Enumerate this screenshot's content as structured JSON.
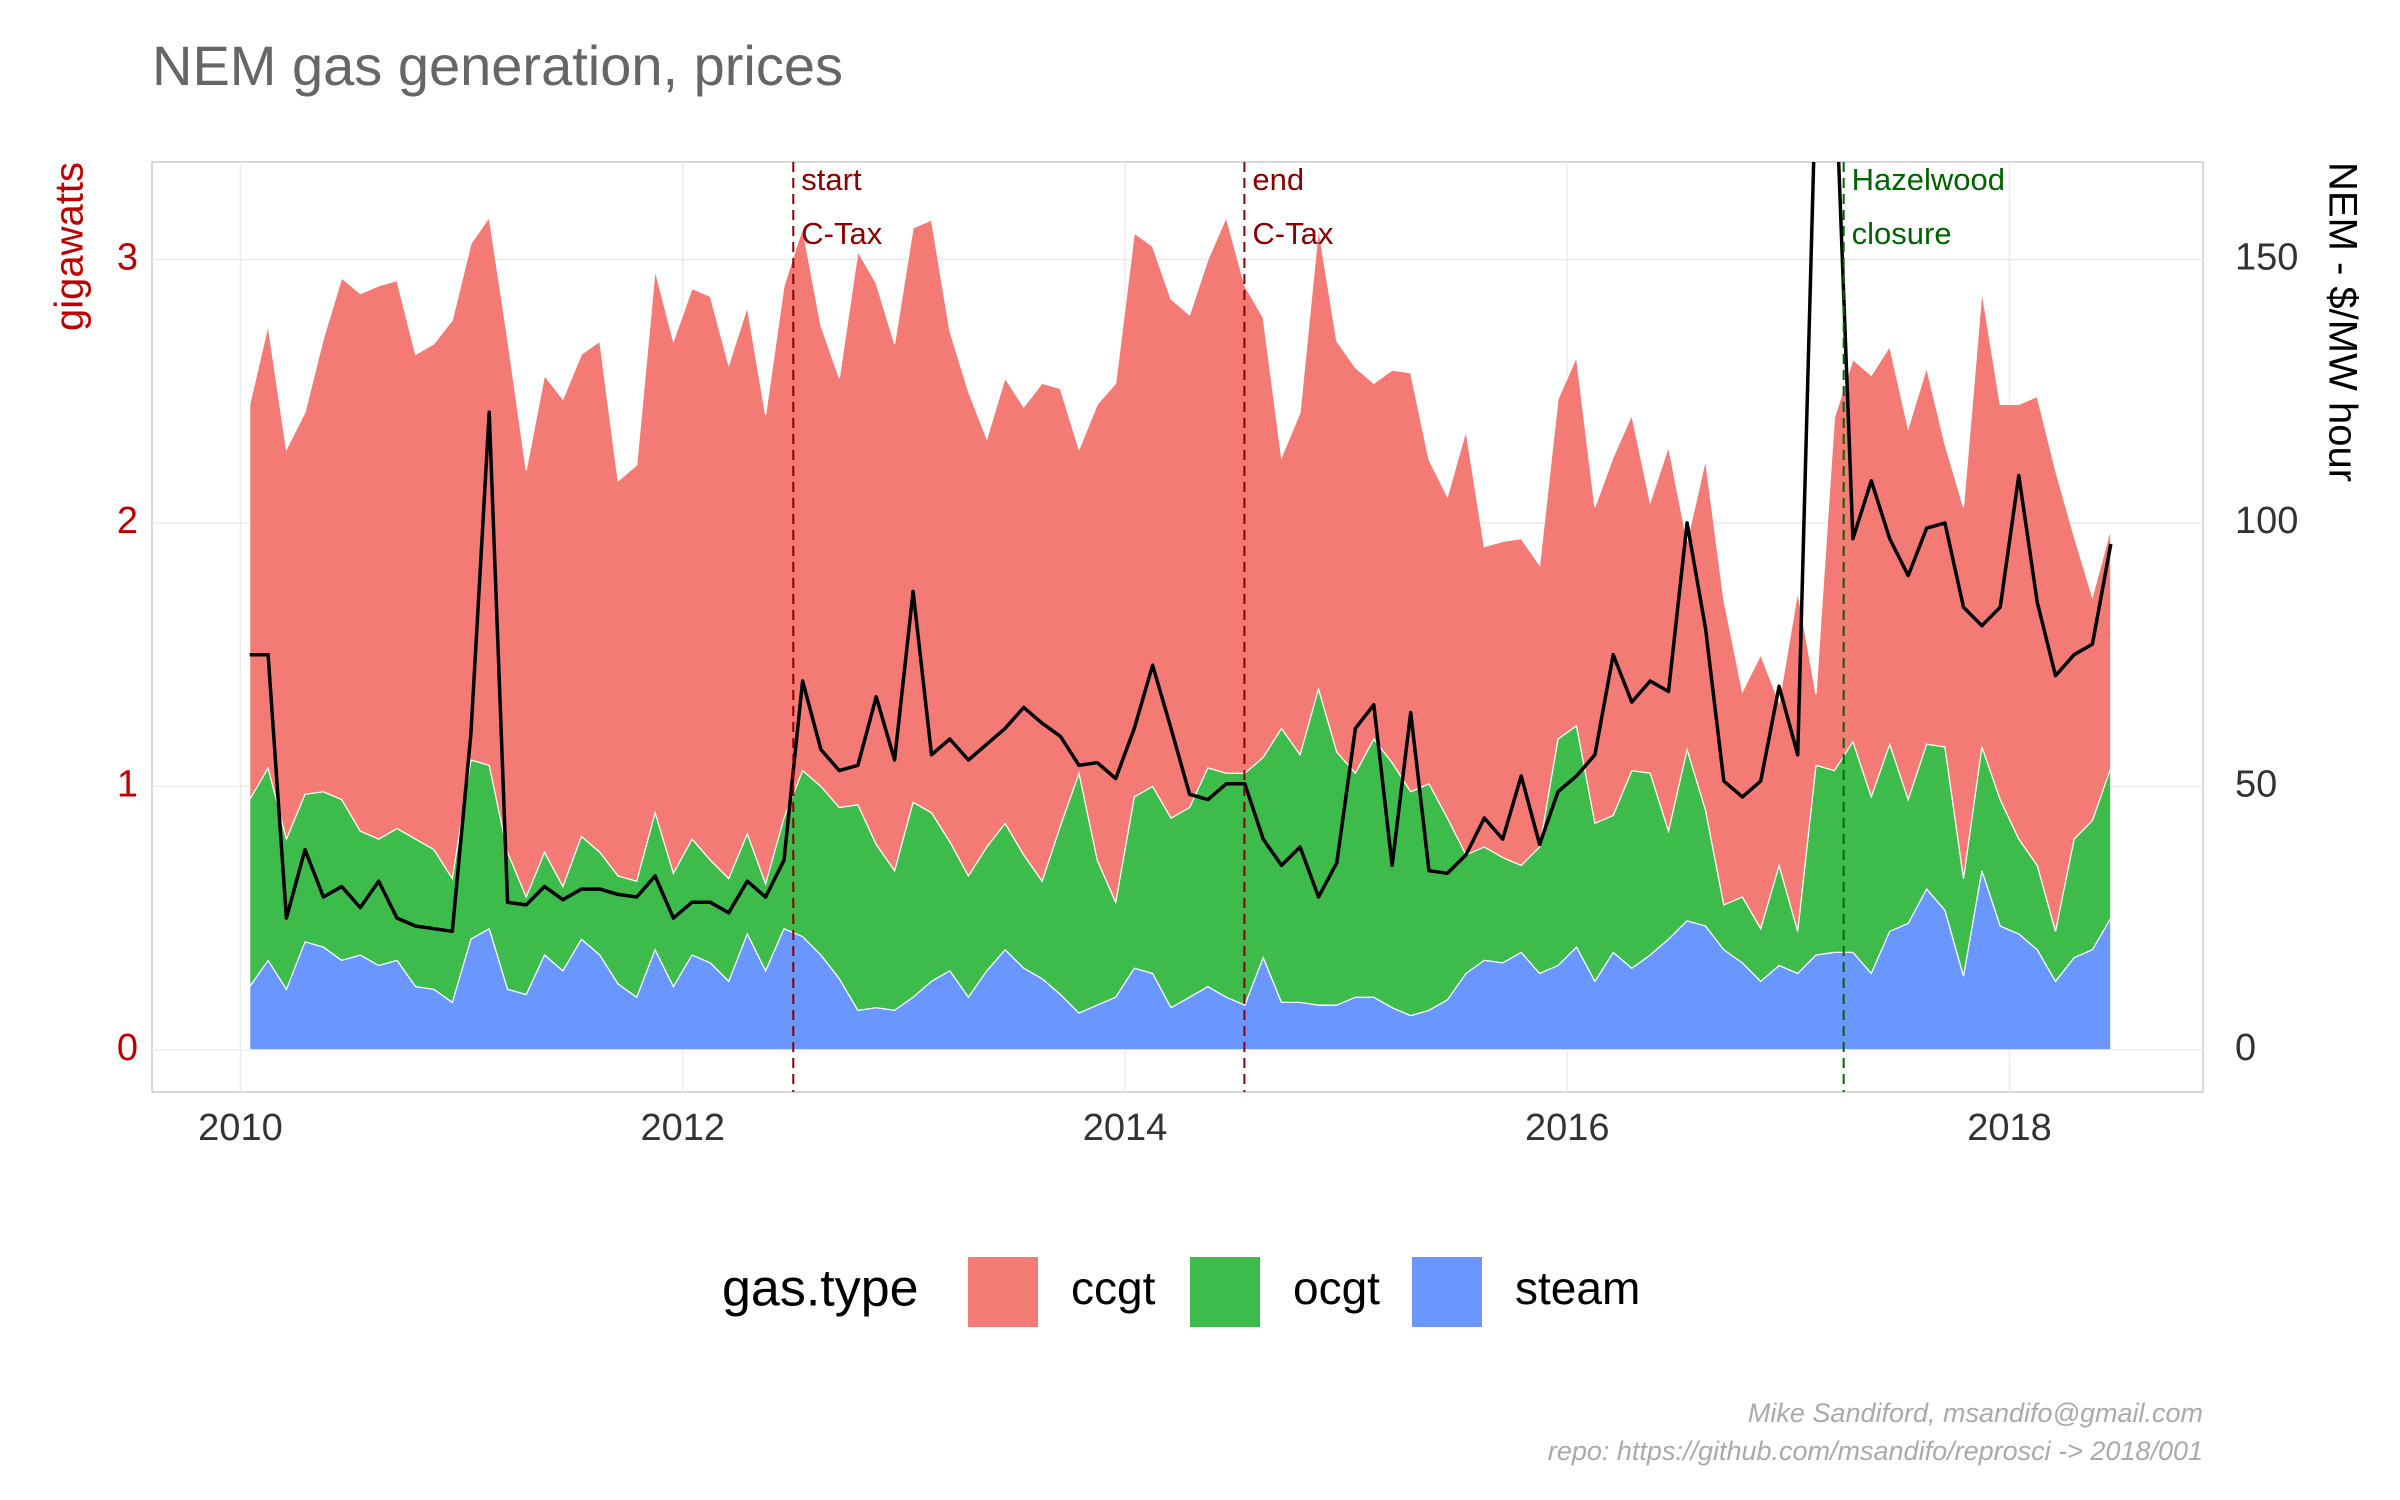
{
  "chart_data": {
    "type": "stacked-area",
    "title": "NEM gas generation, prices",
    "y_label": "gigawatts",
    "y2_label": "NEM - $/MW hour",
    "legend_title": "gas.type",
    "caption": [
      "Mike Sandiford, msandifo@gmail.com",
      "repo: https://github.com/msandifo/reprosci -> 2018/001"
    ],
    "x": [
      2010.042,
      2010.125,
      2010.208,
      2010.292,
      2010.375,
      2010.458,
      2010.542,
      2010.625,
      2010.708,
      2010.792,
      2010.875,
      2010.958,
      2011.042,
      2011.125,
      2011.208,
      2011.292,
      2011.375,
      2011.458,
      2011.542,
      2011.625,
      2011.708,
      2011.792,
      2011.875,
      2011.958,
      2012.042,
      2012.125,
      2012.208,
      2012.292,
      2012.375,
      2012.458,
      2012.542,
      2012.625,
      2012.708,
      2012.792,
      2012.875,
      2012.958,
      2013.042,
      2013.125,
      2013.208,
      2013.292,
      2013.375,
      2013.458,
      2013.542,
      2013.625,
      2013.708,
      2013.792,
      2013.875,
      2013.958,
      2014.042,
      2014.125,
      2014.208,
      2014.292,
      2014.375,
      2014.458,
      2014.542,
      2014.625,
      2014.708,
      2014.792,
      2014.875,
      2014.958,
      2015.042,
      2015.125,
      2015.208,
      2015.292,
      2015.375,
      2015.458,
      2015.542,
      2015.625,
      2015.708,
      2015.792,
      2015.875,
      2015.958,
      2016.042,
      2016.125,
      2016.208,
      2016.292,
      2016.375,
      2016.458,
      2016.542,
      2016.625,
      2016.708,
      2016.792,
      2016.875,
      2016.958,
      2017.042,
      2017.125,
      2017.208,
      2017.292,
      2017.375,
      2017.458,
      2017.542,
      2017.625,
      2017.708,
      2017.792,
      2017.875,
      2017.958,
      2018.042,
      2018.125,
      2018.208,
      2018.292,
      2018.375,
      2018.458
    ],
    "series": [
      {
        "name": "ccgt",
        "color": "#f47a75",
        "values": [
          1.5,
          1.68,
          1.48,
          1.45,
          1.72,
          1.98,
          2.04,
          2.1,
          2.08,
          1.84,
          1.92,
          2.12,
          1.96,
          2.08,
          1.95,
          1.62,
          1.81,
          1.85,
          1.83,
          1.94,
          1.5,
          1.58,
          2.06,
          2.02,
          2.09,
          2.14,
          1.95,
          2.0,
          1.78,
          2.02,
          2.06,
          1.75,
          1.63,
          2.1,
          2.13,
          2.0,
          2.18,
          2.25,
          1.94,
          1.84,
          1.55,
          1.69,
          1.7,
          1.89,
          1.66,
          1.23,
          1.73,
          1.97,
          2.14,
          2.05,
          1.97,
          1.87,
          1.93,
          2.11,
          1.85,
          1.67,
          1.03,
          1.3,
          1.75,
          1.56,
          1.54,
          1.35,
          1.49,
          1.59,
          1.23,
          1.22,
          1.61,
          1.14,
          1.2,
          1.24,
          1.07,
          1.29,
          1.4,
          1.2,
          1.36,
          1.35,
          1.03,
          1.46,
          0.79,
          1.33,
          1.16,
          0.78,
          1.04,
          0.62,
          1.29,
          0.27,
          1.34,
          1.45,
          1.6,
          1.51,
          1.41,
          1.43,
          1.15,
          1.41,
          1.73,
          1.5,
          1.65,
          1.78,
          1.75,
          1.15,
          0.85,
          0.91
        ]
      },
      {
        "name": "ocgt",
        "color": "#3dbb4b",
        "values": [
          0.71,
          0.73,
          0.57,
          0.56,
          0.59,
          0.61,
          0.47,
          0.48,
          0.5,
          0.56,
          0.53,
          0.47,
          0.68,
          0.62,
          0.52,
          0.37,
          0.39,
          0.32,
          0.39,
          0.39,
          0.41,
          0.44,
          0.52,
          0.43,
          0.44,
          0.39,
          0.39,
          0.38,
          0.33,
          0.42,
          0.63,
          0.64,
          0.65,
          0.78,
          0.62,
          0.53,
          0.74,
          0.64,
          0.49,
          0.46,
          0.47,
          0.48,
          0.43,
          0.37,
          0.64,
          0.91,
          0.55,
          0.36,
          0.65,
          0.71,
          0.72,
          0.72,
          0.83,
          0.85,
          0.88,
          0.76,
          1.04,
          0.94,
          1.2,
          0.96,
          0.85,
          0.98,
          0.93,
          0.85,
          0.86,
          0.69,
          0.45,
          0.43,
          0.4,
          0.33,
          0.48,
          0.86,
          0.84,
          0.6,
          0.52,
          0.75,
          0.69,
          0.41,
          0.65,
          0.44,
          0.17,
          0.25,
          0.2,
          0.38,
          0.16,
          0.72,
          0.69,
          0.8,
          0.67,
          0.71,
          0.47,
          0.55,
          0.62,
          0.37,
          0.47,
          0.48,
          0.36,
          0.32,
          0.19,
          0.45,
          0.49,
          0.57
        ]
      },
      {
        "name": "steam",
        "color": "#6a97ff",
        "values": [
          0.24,
          0.34,
          0.23,
          0.41,
          0.39,
          0.34,
          0.36,
          0.32,
          0.34,
          0.24,
          0.23,
          0.18,
          0.42,
          0.46,
          0.23,
          0.21,
          0.36,
          0.3,
          0.42,
          0.36,
          0.25,
          0.2,
          0.38,
          0.24,
          0.36,
          0.33,
          0.26,
          0.44,
          0.3,
          0.46,
          0.43,
          0.36,
          0.27,
          0.15,
          0.16,
          0.15,
          0.2,
          0.26,
          0.3,
          0.2,
          0.3,
          0.38,
          0.31,
          0.27,
          0.21,
          0.14,
          0.17,
          0.2,
          0.31,
          0.29,
          0.16,
          0.2,
          0.24,
          0.2,
          0.17,
          0.35,
          0.18,
          0.18,
          0.17,
          0.17,
          0.2,
          0.2,
          0.16,
          0.13,
          0.15,
          0.19,
          0.29,
          0.34,
          0.33,
          0.37,
          0.29,
          0.32,
          0.39,
          0.26,
          0.37,
          0.31,
          0.36,
          0.42,
          0.49,
          0.47,
          0.38,
          0.33,
          0.26,
          0.32,
          0.29,
          0.36,
          0.37,
          0.37,
          0.29,
          0.45,
          0.48,
          0.61,
          0.53,
          0.28,
          0.68,
          0.47,
          0.44,
          0.38,
          0.26,
          0.35,
          0.38,
          0.5
        ]
      }
    ],
    "price_line": {
      "axis": "y2",
      "color": "#000000",
      "values": [
        75,
        75,
        25,
        38,
        29,
        31,
        27,
        32,
        25,
        23.5,
        23,
        22.5,
        60,
        121,
        28,
        27.5,
        31,
        28.5,
        30.5,
        30.5,
        29.5,
        29,
        33,
        25,
        28,
        28,
        26,
        32,
        29,
        36,
        70,
        57,
        53,
        54,
        67,
        55,
        87,
        56,
        59,
        55,
        58,
        61,
        65,
        62,
        59.5,
        54,
        54.5,
        51.5,
        61,
        73,
        61,
        48.5,
        47.5,
        50.5,
        50.5,
        40,
        35,
        38.5,
        29,
        35.5,
        61,
        65.5,
        35,
        64,
        34,
        33.5,
        37,
        44,
        40,
        52,
        39,
        49,
        52,
        56,
        75,
        66,
        70,
        68,
        100,
        80,
        51,
        48,
        51,
        69,
        56,
        185,
        190,
        97,
        108,
        97,
        90,
        99,
        100,
        84,
        80.5,
        84,
        109,
        85,
        71,
        75,
        77,
        96
      ]
    },
    "events": [
      {
        "x": 2012.5,
        "label": [
          "start",
          "C-Tax"
        ],
        "color": "#8b0000"
      },
      {
        "x": 2014.54,
        "label": [
          "end",
          "C-Tax"
        ],
        "color": "#8b0000"
      },
      {
        "x": 2017.25,
        "label": [
          "Hazelwood",
          "closure"
        ],
        "color": "#006400"
      }
    ],
    "xlim": [
      2009.6,
      2018.875
    ],
    "xticks": [
      2010,
      2012,
      2014,
      2016,
      2018
    ],
    "ylim": [
      -0.16,
      3.37
    ],
    "yticks": [
      0,
      1,
      2,
      3
    ],
    "y2lim": [
      -8,
      168.5
    ],
    "y2ticks": [
      0,
      50,
      100,
      150
    ],
    "grid": true,
    "legend_position": "bottom"
  }
}
